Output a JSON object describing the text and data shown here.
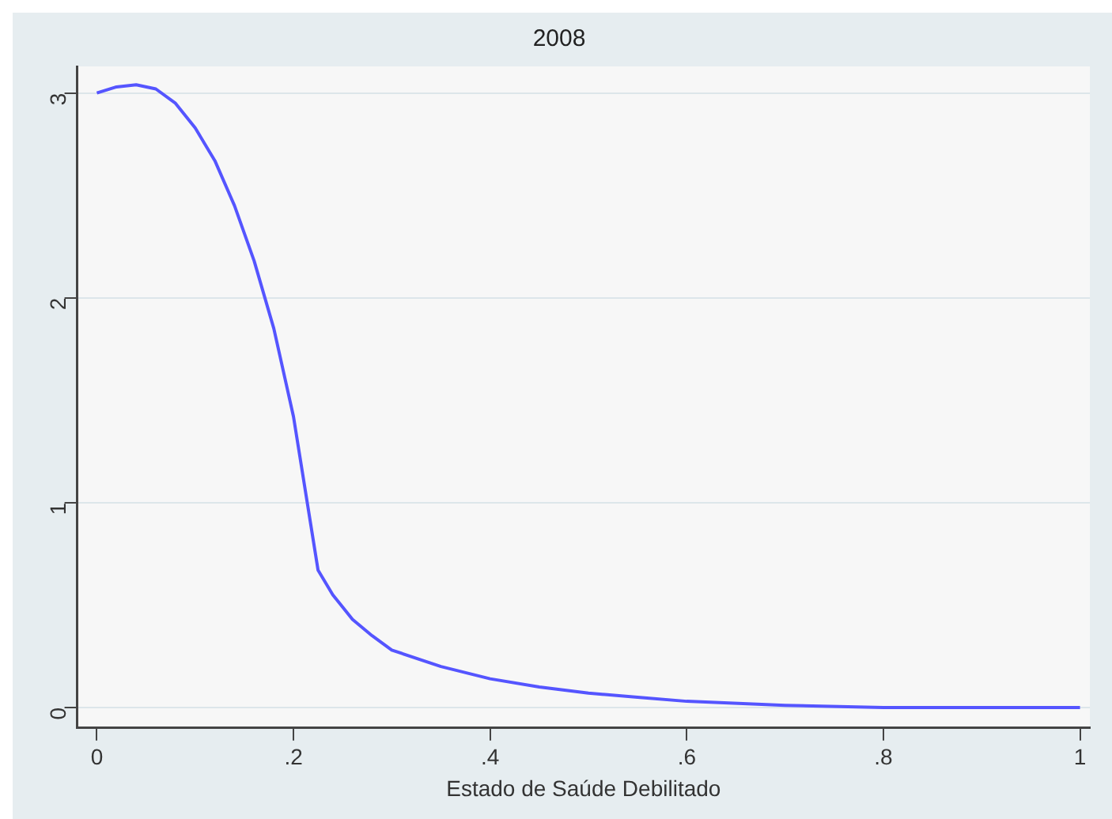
{
  "chart_data": {
    "type": "line",
    "title": "2008",
    "xlabel": "Estado de Saúde Debilitado",
    "series": [
      {
        "color": "#5555ff",
        "x": [
          0,
          0.02,
          0.04,
          0.06,
          0.08,
          0.1,
          0.12,
          0.14,
          0.16,
          0.18,
          0.2,
          0.225,
          0.24,
          0.26,
          0.28,
          0.3,
          0.35,
          0.4,
          0.45,
          0.5,
          0.55,
          0.6,
          0.7,
          0.8,
          0.9,
          1
        ],
        "values": [
          3.0,
          3.03,
          3.04,
          3.02,
          2.95,
          2.83,
          2.67,
          2.45,
          2.18,
          1.85,
          1.42,
          0.67,
          0.55,
          0.43,
          0.35,
          0.28,
          0.2,
          0.14,
          0.1,
          0.07,
          0.05,
          0.03,
          0.01,
          0,
          0,
          0
        ]
      }
    ],
    "xlim": [
      -0.02,
      1.01
    ],
    "xticks": [
      0,
      {
        "value": 0.2,
        "label": ".2"
      },
      {
        "value": 0.4,
        "label": ".4"
      },
      {
        "value": 0.6,
        "label": ".6"
      },
      {
        "value": 0.8,
        "label": ".8"
      },
      1
    ],
    "ylim": [
      -0.1,
      3.13
    ],
    "yticks": [
      0,
      1,
      2,
      3
    ],
    "grid": "y",
    "legend": false,
    "marker": "none",
    "line_style": "solid"
  }
}
